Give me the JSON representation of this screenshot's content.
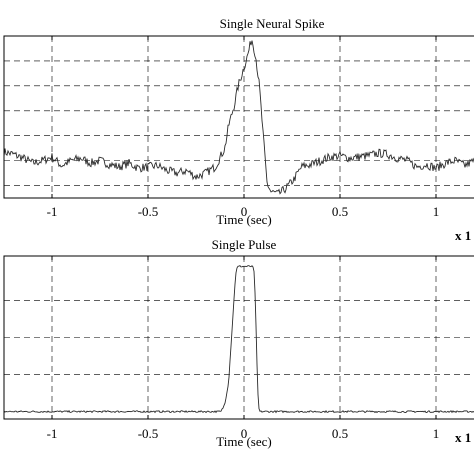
{
  "chart_data": [
    {
      "type": "line",
      "title": "Single Neural Spike",
      "xlabel": "Time (sec)",
      "x_scale_label": "x 1",
      "xlim": [
        -1.25,
        1.25
      ],
      "ylim": [
        -0.3,
        1.0
      ],
      "xticks": [
        -1,
        -0.5,
        0,
        0.5,
        1
      ],
      "xtick_labels": [
        "-1",
        "-0.5",
        "0",
        "0.5",
        "1"
      ],
      "y_grid": [
        -0.2,
        0.0,
        0.2,
        0.4,
        0.6,
        0.8
      ],
      "grid": true,
      "noise": 0.035,
      "series": [
        {
          "x": [
            -1.25,
            -1.2,
            -1.15,
            -1.1,
            -1.05,
            -1.0,
            -0.95,
            -0.9,
            -0.85,
            -0.8,
            -0.75,
            -0.7,
            -0.65,
            -0.6,
            -0.55,
            -0.5,
            -0.45,
            -0.4,
            -0.35,
            -0.3,
            -0.25,
            -0.2,
            -0.15,
            -0.1,
            -0.08,
            -0.05,
            -0.03,
            0.0,
            0.02,
            0.04,
            0.06,
            0.08,
            0.1,
            0.12,
            0.14,
            0.18,
            0.22,
            0.26,
            0.3,
            0.35,
            0.4,
            0.45,
            0.5,
            0.55,
            0.6,
            0.65,
            0.7,
            0.75,
            0.8,
            0.85,
            0.9,
            0.95,
            1.0,
            1.05,
            1.1,
            1.15,
            1.2,
            1.25
          ],
          "y": [
            0.07,
            0.05,
            0.02,
            -0.02,
            0.0,
            0.03,
            -0.04,
            0.0,
            0.02,
            -0.02,
            0.0,
            -0.03,
            -0.05,
            -0.02,
            -0.06,
            -0.05,
            -0.04,
            -0.08,
            -0.1,
            -0.08,
            -0.13,
            -0.1,
            -0.05,
            0.1,
            0.28,
            0.45,
            0.6,
            0.75,
            0.85,
            0.98,
            0.85,
            0.6,
            0.2,
            -0.18,
            -0.25,
            -0.27,
            -0.22,
            -0.15,
            -0.05,
            -0.03,
            0.0,
            0.03,
            0.04,
            0.02,
            0.03,
            0.04,
            0.06,
            0.05,
            0.02,
            0.0,
            -0.05,
            -0.03,
            -0.06,
            -0.02,
            0.0,
            -0.04,
            0.0,
            -0.02
          ]
        }
      ]
    },
    {
      "type": "line",
      "title": "Single Pulse",
      "xlabel": "Time (sec)",
      "x_scale_label": "x 1",
      "xlim": [
        -1.25,
        1.25
      ],
      "ylim": [
        -0.05,
        1.05
      ],
      "xticks": [
        -1,
        -0.5,
        0,
        0.5,
        1
      ],
      "xtick_labels": [
        "-1",
        "-0.5",
        "0",
        "0.5",
        "1"
      ],
      "y_grid": [
        0.25,
        0.5,
        0.75
      ],
      "grid": true,
      "noise": 0.006,
      "series": [
        {
          "x": [
            -1.25,
            -0.15,
            -0.12,
            -0.1,
            -0.08,
            -0.07,
            -0.06,
            -0.05,
            -0.045,
            -0.04,
            -0.03,
            -0.02,
            0.0,
            0.02,
            0.04,
            0.05,
            0.055,
            0.06,
            0.065,
            0.07,
            0.075,
            0.08,
            1.25
          ],
          "y": [
            0.0,
            0.0,
            0.0,
            0.05,
            0.2,
            0.4,
            0.6,
            0.8,
            0.9,
            0.96,
            0.98,
            0.98,
            0.98,
            0.98,
            0.98,
            0.97,
            0.9,
            0.7,
            0.45,
            0.2,
            0.05,
            0.0,
            0.0
          ]
        }
      ]
    }
  ]
}
